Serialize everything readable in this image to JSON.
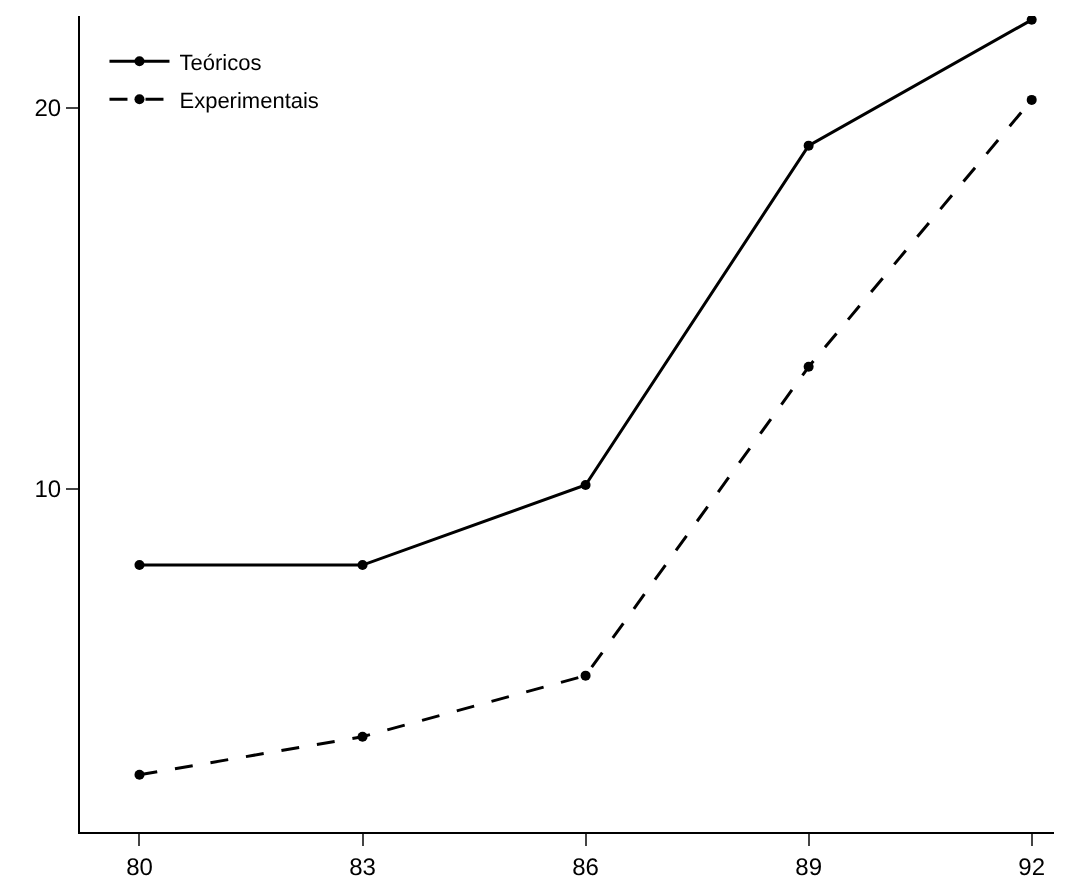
{
  "chart_data": {
    "type": "line",
    "x": [
      80,
      83,
      86,
      89,
      92
    ],
    "series": [
      {
        "name": "Teóricos",
        "color": "#000000",
        "values": [
          8.0,
          8.0,
          10.1,
          19.0,
          22.3
        ],
        "line_style": "solid"
      },
      {
        "name": "Experimentais",
        "color": "#000000",
        "values": [
          2.5,
          3.5,
          5.1,
          13.2,
          20.2
        ],
        "line_style": "dashed"
      }
    ],
    "xlim": [
      79.2,
      92.3
    ],
    "ylim": [
      1.0,
      22.4
    ],
    "xticks": [
      80,
      83,
      86,
      89,
      92
    ],
    "yticks": [
      10,
      20
    ],
    "legend": "top left",
    "marker": "circle"
  }
}
